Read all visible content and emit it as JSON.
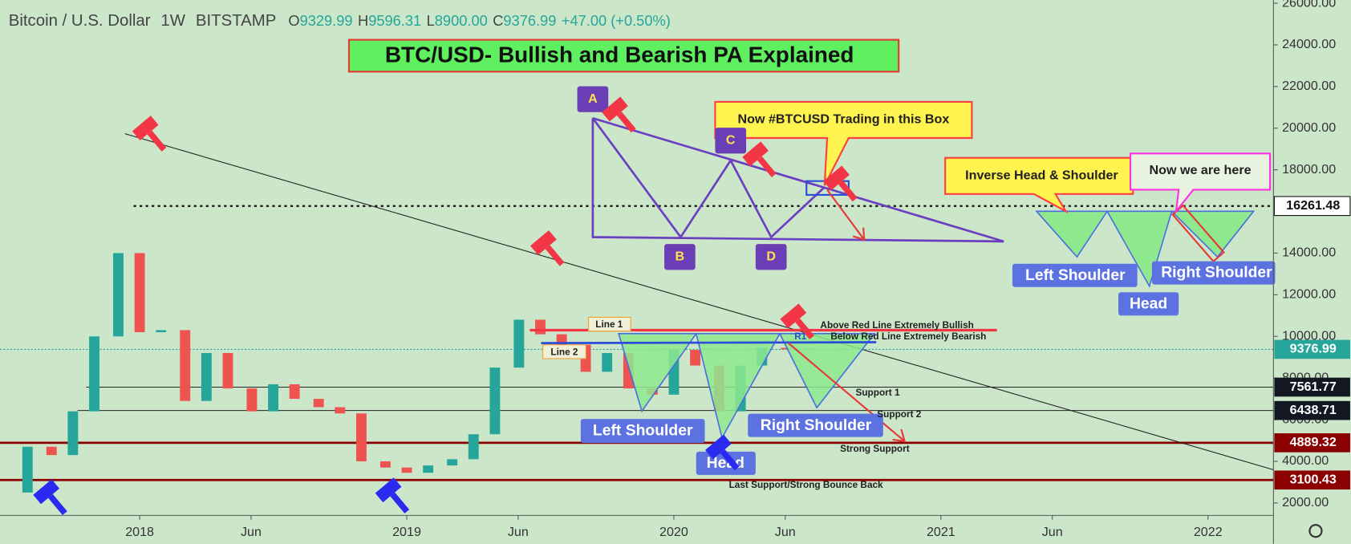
{
  "header": {
    "symbol": "Bitcoin / U.S. Dollar",
    "interval": "1W",
    "exchange": "BITSTAMP",
    "ohlc": [
      {
        "label": "O",
        "value": "9329.99"
      },
      {
        "label": "H",
        "value": "9596.31"
      },
      {
        "label": "L",
        "value": "8900.00"
      },
      {
        "label": "C",
        "value": "9376.99"
      }
    ],
    "change": "+47.00 (+0.50%)"
  },
  "annotations": {
    "title": "BTC/USD- Bullish and Bearish PA Explained",
    "callout_box": "Now #BTCUSD Trading in this Box",
    "callout_ihs": "Inverse Head & Shoulder",
    "now_here": "Now we are here",
    "a": "A",
    "b": "B",
    "c": "C",
    "d": "D",
    "ihs_left": "Left Shoulder",
    "ihs_head": "Head",
    "ihs_right": "Right Shoulder",
    "left_shoulder": "Left Shoulder",
    "head": "Head",
    "right_shoulder": "Right Shoulder",
    "line1": "Line 1",
    "line2": "Line 2",
    "above": "Above Red Line Extremely Bullish",
    "below": "Below Red Line Extremely Bearish",
    "r1": "R1",
    "support1": "Support 1",
    "support2": "Support 2",
    "strong": "Strong Support",
    "last": "Last Support/Strong Bounce Back"
  },
  "chart_data": {
    "type": "candlestick",
    "x": [
      2017.5,
      2017.58,
      2017.67,
      2017.75,
      2017.83,
      2017.92,
      2018.0,
      2018.08,
      2018.17,
      2018.25,
      2018.33,
      2018.42,
      2018.5,
      2018.58,
      2018.67,
      2018.75,
      2018.83,
      2018.92,
      2019.0,
      2019.08,
      2019.17,
      2019.25,
      2019.33,
      2019.42,
      2019.5,
      2019.58,
      2019.67,
      2019.75,
      2019.83,
      2019.92,
      2020.0,
      2020.08,
      2020.17,
      2020.25,
      2020.33,
      2020.42
    ],
    "series": [
      {
        "name": "BTCUSD",
        "up_color": "#26a69a",
        "down_color": "#ef5350",
        "values": [
          2500,
          4700,
          4300,
          6400,
          10000,
          14000,
          10200,
          10300,
          6900,
          9200,
          7500,
          6400,
          7700,
          7000,
          6600,
          6300,
          4000,
          3700,
          3450,
          3800,
          4100,
          5300,
          8500,
          10800,
          10100,
          9600,
          8300,
          9200,
          7500,
          7200,
          9350,
          8600,
          6400,
          8600,
          9450,
          9376.99
        ]
      }
    ],
    "xlim": [
      2017.477,
      2022.245
    ],
    "ylim": [
      1400,
      26150
    ],
    "xticks": [
      {
        "value": 2018,
        "label": "2018"
      },
      {
        "value": 2018.417,
        "label": "Jun"
      },
      {
        "value": 2019,
        "label": "2019"
      },
      {
        "value": 2019.417,
        "label": "Jun"
      },
      {
        "value": 2020,
        "label": "2020"
      },
      {
        "value": 2020.417,
        "label": "Jun"
      },
      {
        "value": 2021,
        "label": "2021"
      },
      {
        "value": 2021.417,
        "label": "Jun"
      },
      {
        "value": 2022,
        "label": "2022"
      }
    ],
    "yticks": [
      {
        "value": 2000,
        "label": "2000.00"
      },
      {
        "value": 4000,
        "label": "4000.00"
      },
      {
        "value": 6000,
        "label": "6000.00"
      },
      {
        "value": 8000,
        "label": "8000.00"
      },
      {
        "value": 10000,
        "label": "10000.00"
      },
      {
        "value": 12000,
        "label": "12000.00"
      },
      {
        "value": 14000,
        "label": "14000.00"
      },
      {
        "value": 16000,
        "label": "16000.00"
      },
      {
        "value": 18000,
        "label": "18000.00"
      },
      {
        "value": 20000,
        "label": "20000.00"
      },
      {
        "value": 22000,
        "label": "22000.00"
      },
      {
        "value": 24000,
        "label": "24000.00"
      },
      {
        "value": 26000,
        "label": "26000.00"
      }
    ],
    "levels": [
      {
        "value": 16261.48,
        "color": "#ffffff"
      },
      {
        "value": 9376.99,
        "color": "#26a69a"
      },
      {
        "value": 7561.77,
        "color": "#131722"
      },
      {
        "value": 6438.71,
        "color": "#131722"
      },
      {
        "value": 4889.32,
        "color": "#8b0000"
      },
      {
        "value": 3100.43,
        "color": "#8b0000"
      }
    ]
  }
}
